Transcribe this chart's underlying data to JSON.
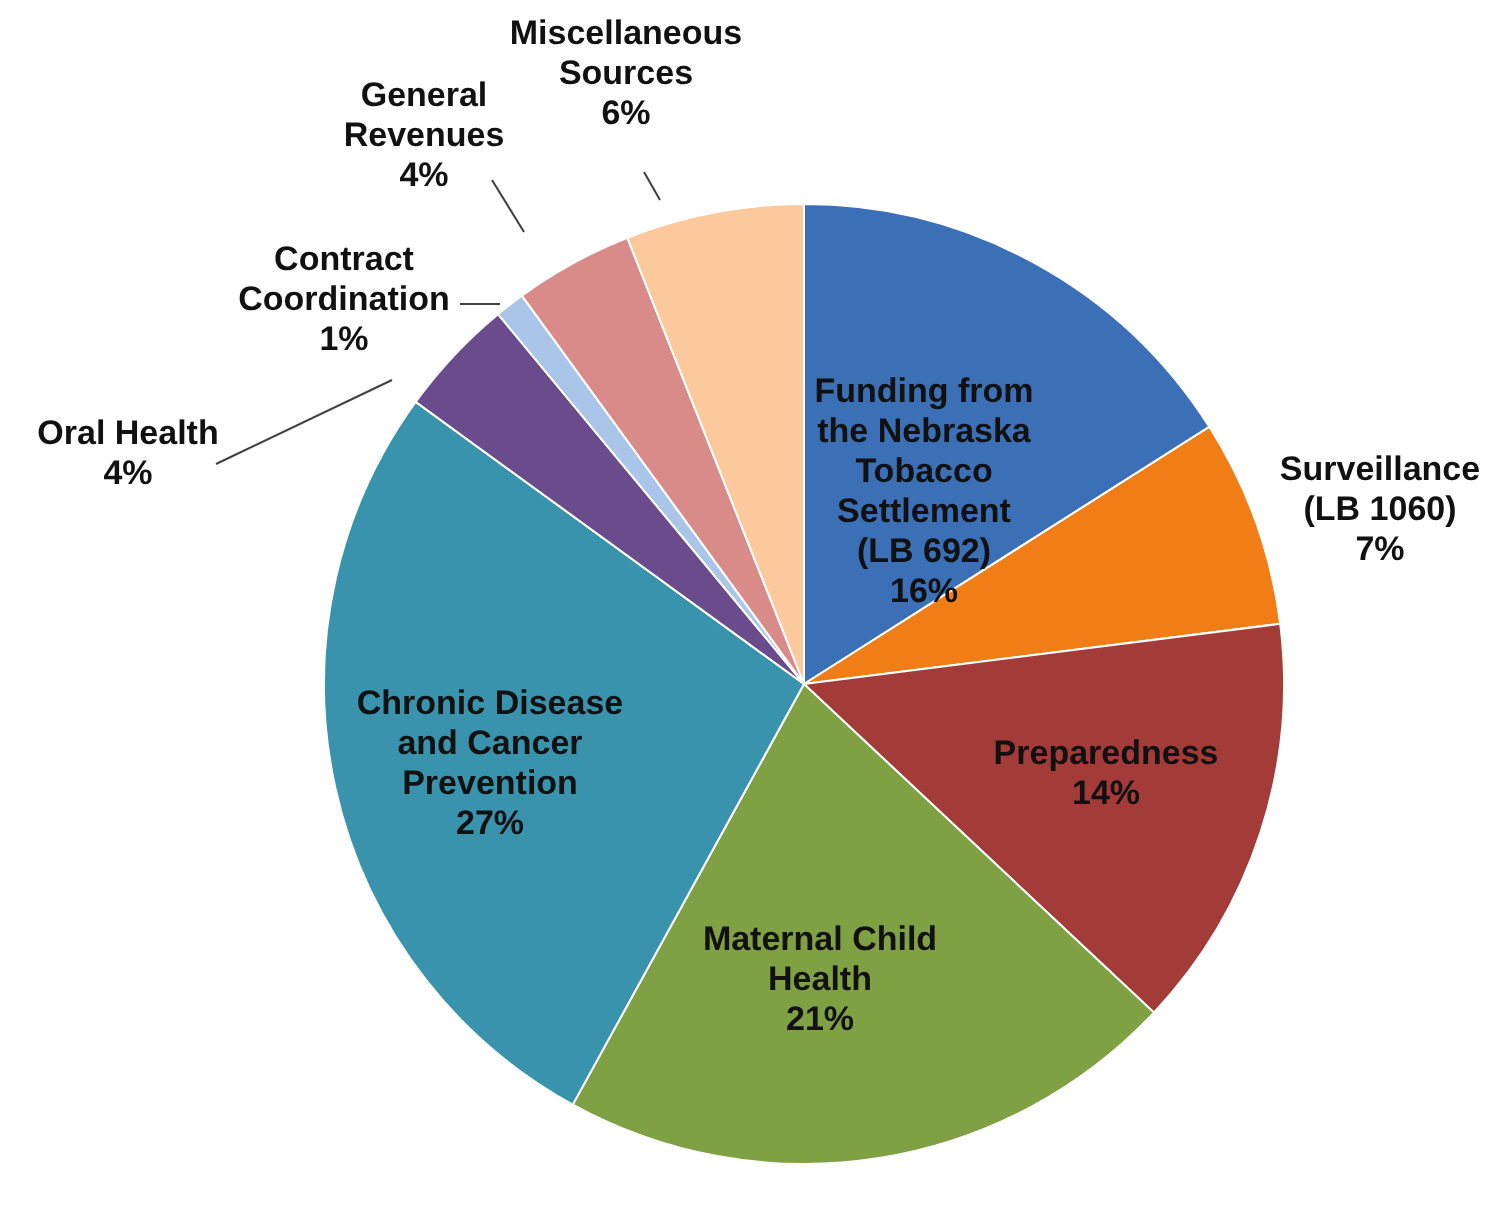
{
  "chart_data": {
    "type": "pie",
    "categories": [
      "Funding from\nthe Nebraska\nTobacco\nSettlement\n(LB 692)",
      "Surveillance\n(LB 1060)",
      "Preparedness",
      "Maternal Child\nHealth",
      "Chronic Disease\nand Cancer\nPrevention",
      "Oral Health",
      "Contract\nCoordination",
      "General\nRevenues",
      "Miscellaneous\nSources"
    ],
    "values": [
      16,
      7,
      14,
      21,
      27,
      4,
      1,
      4,
      6
    ],
    "value_labels": [
      "16%",
      "7%",
      "14%",
      "21%",
      "27%",
      "4%",
      "1%",
      "4%",
      "6%"
    ],
    "colors": [
      "#3b6fb6",
      "#f07d16",
      "#a33b39",
      "#7fa143",
      "#3a93ad",
      "#6a4c8c",
      "#a9c6e8",
      "#d98b8a",
      "#fbc99b"
    ]
  }
}
